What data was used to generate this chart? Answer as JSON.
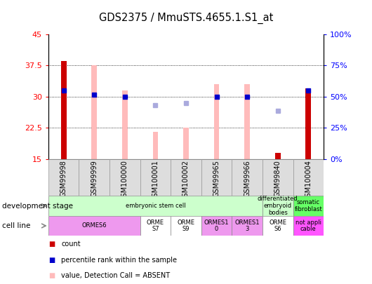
{
  "title": "GDS2375 / MmuSTS.4655.1.S1_at",
  "samples": [
    "GSM99998",
    "GSM99999",
    "GSM100000",
    "GSM100001",
    "GSM100002",
    "GSM99965",
    "GSM99966",
    "GSM99840",
    "GSM100004"
  ],
  "ylim_left": [
    15,
    45
  ],
  "ylim_right": [
    0,
    100
  ],
  "yticks_left": [
    15,
    22.5,
    30,
    37.5,
    45
  ],
  "yticks_right": [
    0,
    25,
    50,
    75,
    100
  ],
  "ytick_labels_left": [
    "15",
    "22.5",
    "30",
    "37.5",
    "45"
  ],
  "ytick_labels_right": [
    "0%",
    "25%",
    "50%",
    "75%",
    "100%"
  ],
  "bar_values": [
    38.5,
    37.5,
    31.5,
    21.5,
    22.5,
    33.0,
    33.0,
    16.5,
    32.0
  ],
  "bar_colors": [
    "#cc0000",
    "#ffbbbb",
    "#ffbbbb",
    "#ffbbbb",
    "#ffbbbb",
    "#ffbbbb",
    "#ffbbbb",
    "#cc0000",
    "#cc0000"
  ],
  "rank_dots": [
    31.5,
    30.5,
    30.0,
    null,
    null,
    30.0,
    30.0,
    null,
    31.5
  ],
  "rank_dot_color": "#0000cc",
  "absent_rank": [
    null,
    null,
    null,
    28.0,
    28.5,
    null,
    null,
    26.5,
    null
  ],
  "absent_rank_color": "#aaaadd",
  "dev_stage_groups": [
    {
      "label": "embryonic stem cell",
      "start": 0,
      "end": 7,
      "color": "#ccffcc"
    },
    {
      "label": "differentiated\nembryoid\nbodies",
      "start": 7,
      "end": 8,
      "color": "#ccffcc"
    },
    {
      "label": "somatic\nfibroblast",
      "start": 8,
      "end": 9,
      "color": "#66ff66"
    }
  ],
  "cell_line_groups": [
    {
      "label": "ORMES6",
      "start": 0,
      "end": 3,
      "color": "#ee99ee"
    },
    {
      "label": "ORME\nS7",
      "start": 3,
      "end": 4,
      "color": "#ffffff"
    },
    {
      "label": "ORME\nS9",
      "start": 4,
      "end": 5,
      "color": "#ffffff"
    },
    {
      "label": "ORMES1\n0",
      "start": 5,
      "end": 6,
      "color": "#ee99ee"
    },
    {
      "label": "ORMES1\n3",
      "start": 6,
      "end": 7,
      "color": "#ee99ee"
    },
    {
      "label": "ORME\nS6",
      "start": 7,
      "end": 8,
      "color": "#ffffff"
    },
    {
      "label": "not appli\ncable",
      "start": 8,
      "end": 9,
      "color": "#ff55ff"
    }
  ],
  "legend_items": [
    {
      "color": "#cc0000",
      "label": "count"
    },
    {
      "color": "#0000cc",
      "label": "percentile rank within the sample"
    },
    {
      "color": "#ffbbbb",
      "label": "value, Detection Call = ABSENT"
    },
    {
      "color": "#aaaadd",
      "label": "rank, Detection Call = ABSENT"
    }
  ]
}
